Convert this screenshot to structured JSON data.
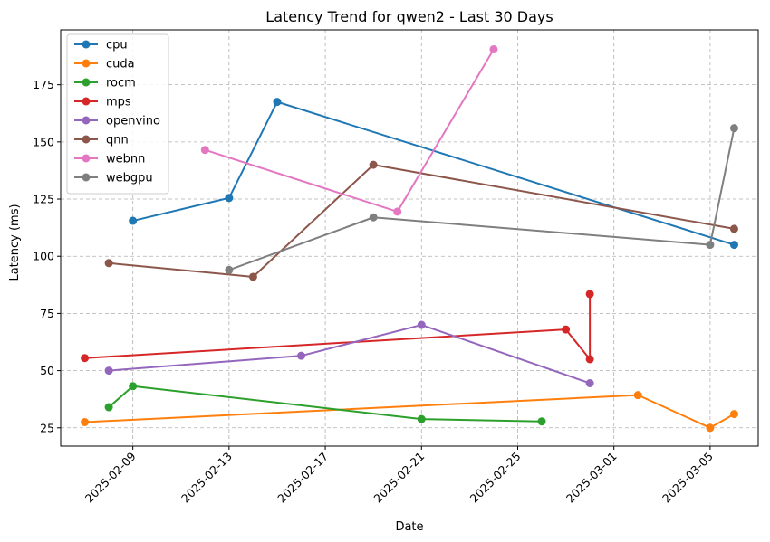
{
  "chart_data": {
    "type": "line",
    "title": "Latency Trend for qwen2 - Last 30 Days",
    "xlabel": "Date",
    "ylabel": "Latency (ms)",
    "x_ticks": [
      "2025-02-09",
      "2025-02-13",
      "2025-02-17",
      "2025-02-21",
      "2025-02-25",
      "2025-03-01",
      "2025-03-05"
    ],
    "y_ticks": [
      25,
      50,
      75,
      100,
      125,
      150,
      175
    ],
    "xlim": [
      "2025-02-06",
      "2025-03-07"
    ],
    "ylim": [
      17,
      199
    ],
    "grid": true,
    "legend_position": "top-left",
    "series": [
      {
        "name": "cpu",
        "color": "#1f77b4",
        "points": [
          [
            "2025-02-09",
            115.5
          ],
          [
            "2025-02-13",
            125.5
          ],
          [
            "2025-02-15",
            167.5
          ],
          [
            "2025-03-06",
            105
          ]
        ]
      },
      {
        "name": "cuda",
        "color": "#ff7f0e",
        "points": [
          [
            "2025-02-07",
            27.5
          ],
          [
            "2025-03-02",
            39.3
          ],
          [
            "2025-03-05",
            25
          ],
          [
            "2025-03-06",
            31
          ]
        ]
      },
      {
        "name": "rocm",
        "color": "#2ca02c",
        "points": [
          [
            "2025-02-08",
            34
          ],
          [
            "2025-02-09",
            43.2
          ],
          [
            "2025-02-21",
            28.8
          ],
          [
            "2025-02-26",
            27.8
          ]
        ]
      },
      {
        "name": "mps",
        "color": "#d62728",
        "points": [
          [
            "2025-02-07",
            55.5
          ],
          [
            "2025-02-27",
            68
          ],
          [
            "2025-02-28",
            55
          ],
          [
            "2025-02-28",
            83.5
          ]
        ]
      },
      {
        "name": "openvino",
        "color": "#9467bd",
        "points": [
          [
            "2025-02-08",
            50
          ],
          [
            "2025-02-16",
            56.5
          ],
          [
            "2025-02-21",
            70
          ],
          [
            "2025-02-28",
            44.5
          ]
        ]
      },
      {
        "name": "qnn",
        "color": "#8c564b",
        "points": [
          [
            "2025-02-08",
            97
          ],
          [
            "2025-02-14",
            91
          ],
          [
            "2025-02-19",
            140
          ],
          [
            "2025-03-06",
            112
          ]
        ]
      },
      {
        "name": "webnn",
        "color": "#e377c2",
        "points": [
          [
            "2025-02-12",
            146.5
          ],
          [
            "2025-02-20",
            119.5
          ],
          [
            "2025-02-24",
            190.5
          ]
        ]
      },
      {
        "name": "webgpu",
        "color": "#7f7f7f",
        "points": [
          [
            "2025-02-13",
            94
          ],
          [
            "2025-02-19",
            117
          ],
          [
            "2025-03-05",
            105
          ],
          [
            "2025-03-06",
            156
          ]
        ]
      }
    ]
  }
}
